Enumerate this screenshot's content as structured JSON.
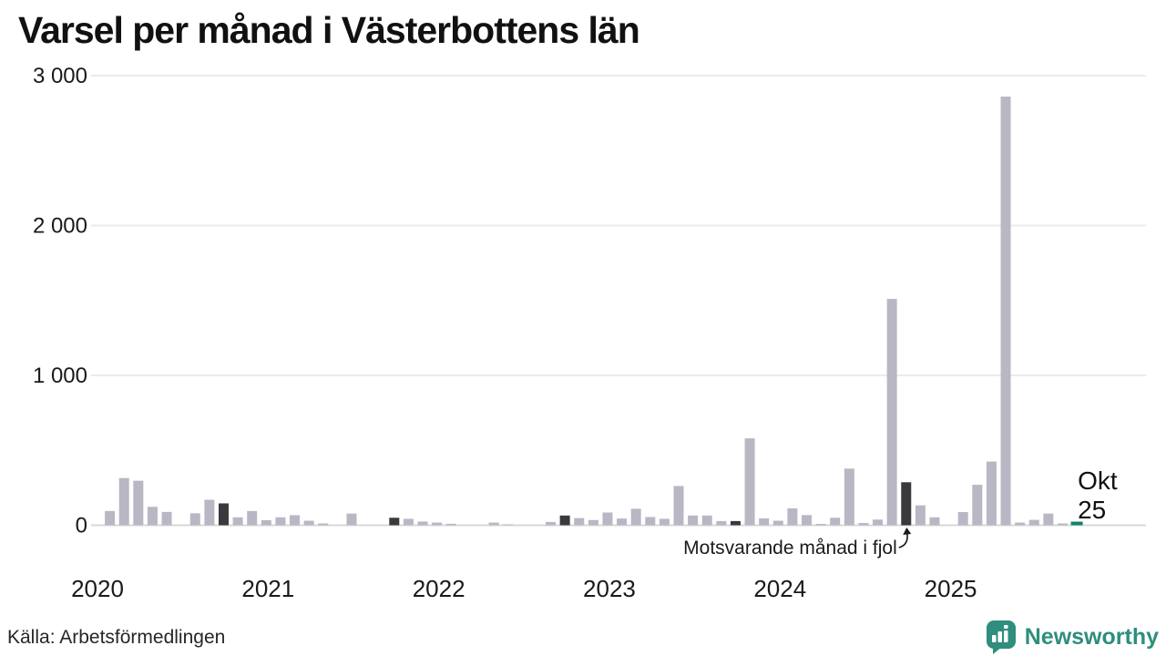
{
  "title": "Varsel per månad i Västerbottens län",
  "annotation": {
    "text": "Motsvarande månad i fjol",
    "target_month": "2024-10"
  },
  "current_label": {
    "line1": "Okt",
    "line2": "25"
  },
  "footer": {
    "source": "Källa: Arbetsförmedlingen",
    "brand": "Newsworthy"
  },
  "colors": {
    "bar": "#b9b7c4",
    "bar_fjol": "#3a393d",
    "bar_current": "#11816d",
    "grid": "#ebebeb",
    "axis": "#d8d8d8",
    "text": "#1a1a1a",
    "title": "#111111",
    "brand": "#2f8e7d"
  },
  "chart_data": {
    "type": "bar",
    "title": "Varsel per månad i Västerbottens län",
    "xlabel": "",
    "ylabel": "",
    "ylim": [
      0,
      3000
    ],
    "grid": "horizontal",
    "y_ticks": [
      {
        "value": 0,
        "label": "0"
      },
      {
        "value": 1000,
        "label": "1 000"
      },
      {
        "value": 2000,
        "label": "2 000"
      },
      {
        "value": 3000,
        "label": "3 000"
      }
    ],
    "x_year_labels": [
      "2020",
      "2021",
      "2022",
      "2023",
      "2024",
      "2025"
    ],
    "fjol_months": [
      "2020-10",
      "2021-10",
      "2022-10",
      "2023-10",
      "2024-10"
    ],
    "current_month": "2025-10",
    "months": [
      {
        "m": "2020-01",
        "v": 0
      },
      {
        "m": "2020-02",
        "v": 95
      },
      {
        "m": "2020-03",
        "v": 315
      },
      {
        "m": "2020-04",
        "v": 297
      },
      {
        "m": "2020-05",
        "v": 123
      },
      {
        "m": "2020-06",
        "v": 89
      },
      {
        "m": "2020-07",
        "v": 0
      },
      {
        "m": "2020-08",
        "v": 80
      },
      {
        "m": "2020-09",
        "v": 170
      },
      {
        "m": "2020-10",
        "v": 146
      },
      {
        "m": "2020-11",
        "v": 53
      },
      {
        "m": "2020-12",
        "v": 95
      },
      {
        "m": "2021-01",
        "v": 34
      },
      {
        "m": "2021-02",
        "v": 53
      },
      {
        "m": "2021-03",
        "v": 67
      },
      {
        "m": "2021-04",
        "v": 30
      },
      {
        "m": "2021-05",
        "v": 12
      },
      {
        "m": "2021-06",
        "v": 0
      },
      {
        "m": "2021-07",
        "v": 78
      },
      {
        "m": "2021-08",
        "v": 0
      },
      {
        "m": "2021-09",
        "v": 0
      },
      {
        "m": "2021-10",
        "v": 50
      },
      {
        "m": "2021-11",
        "v": 43
      },
      {
        "m": "2021-12",
        "v": 25
      },
      {
        "m": "2022-01",
        "v": 18
      },
      {
        "m": "2022-02",
        "v": 10
      },
      {
        "m": "2022-03",
        "v": 0
      },
      {
        "m": "2022-04",
        "v": 0
      },
      {
        "m": "2022-05",
        "v": 18
      },
      {
        "m": "2022-06",
        "v": 6
      },
      {
        "m": "2022-07",
        "v": 0
      },
      {
        "m": "2022-08",
        "v": 0
      },
      {
        "m": "2022-09",
        "v": 22
      },
      {
        "m": "2022-10",
        "v": 65
      },
      {
        "m": "2022-11",
        "v": 48
      },
      {
        "m": "2022-12",
        "v": 35
      },
      {
        "m": "2023-01",
        "v": 85
      },
      {
        "m": "2023-02",
        "v": 45
      },
      {
        "m": "2023-03",
        "v": 110
      },
      {
        "m": "2023-04",
        "v": 55
      },
      {
        "m": "2023-05",
        "v": 43
      },
      {
        "m": "2023-06",
        "v": 262
      },
      {
        "m": "2023-07",
        "v": 65
      },
      {
        "m": "2023-08",
        "v": 65
      },
      {
        "m": "2023-09",
        "v": 28
      },
      {
        "m": "2023-10",
        "v": 28
      },
      {
        "m": "2023-11",
        "v": 580
      },
      {
        "m": "2023-12",
        "v": 46
      },
      {
        "m": "2024-01",
        "v": 30
      },
      {
        "m": "2024-02",
        "v": 113
      },
      {
        "m": "2024-03",
        "v": 68
      },
      {
        "m": "2024-04",
        "v": 9
      },
      {
        "m": "2024-05",
        "v": 50
      },
      {
        "m": "2024-06",
        "v": 378
      },
      {
        "m": "2024-07",
        "v": 15
      },
      {
        "m": "2024-08",
        "v": 38
      },
      {
        "m": "2024-09",
        "v": 1510
      },
      {
        "m": "2024-10",
        "v": 287
      },
      {
        "m": "2024-11",
        "v": 133
      },
      {
        "m": "2024-12",
        "v": 53
      },
      {
        "m": "2025-01",
        "v": 0
      },
      {
        "m": "2025-02",
        "v": 88
      },
      {
        "m": "2025-03",
        "v": 270
      },
      {
        "m": "2025-04",
        "v": 425
      },
      {
        "m": "2025-05",
        "v": 2860
      },
      {
        "m": "2025-06",
        "v": 18
      },
      {
        "m": "2025-07",
        "v": 36
      },
      {
        "m": "2025-08",
        "v": 78
      },
      {
        "m": "2025-09",
        "v": 12
      },
      {
        "m": "2025-10",
        "v": 24
      }
    ]
  }
}
